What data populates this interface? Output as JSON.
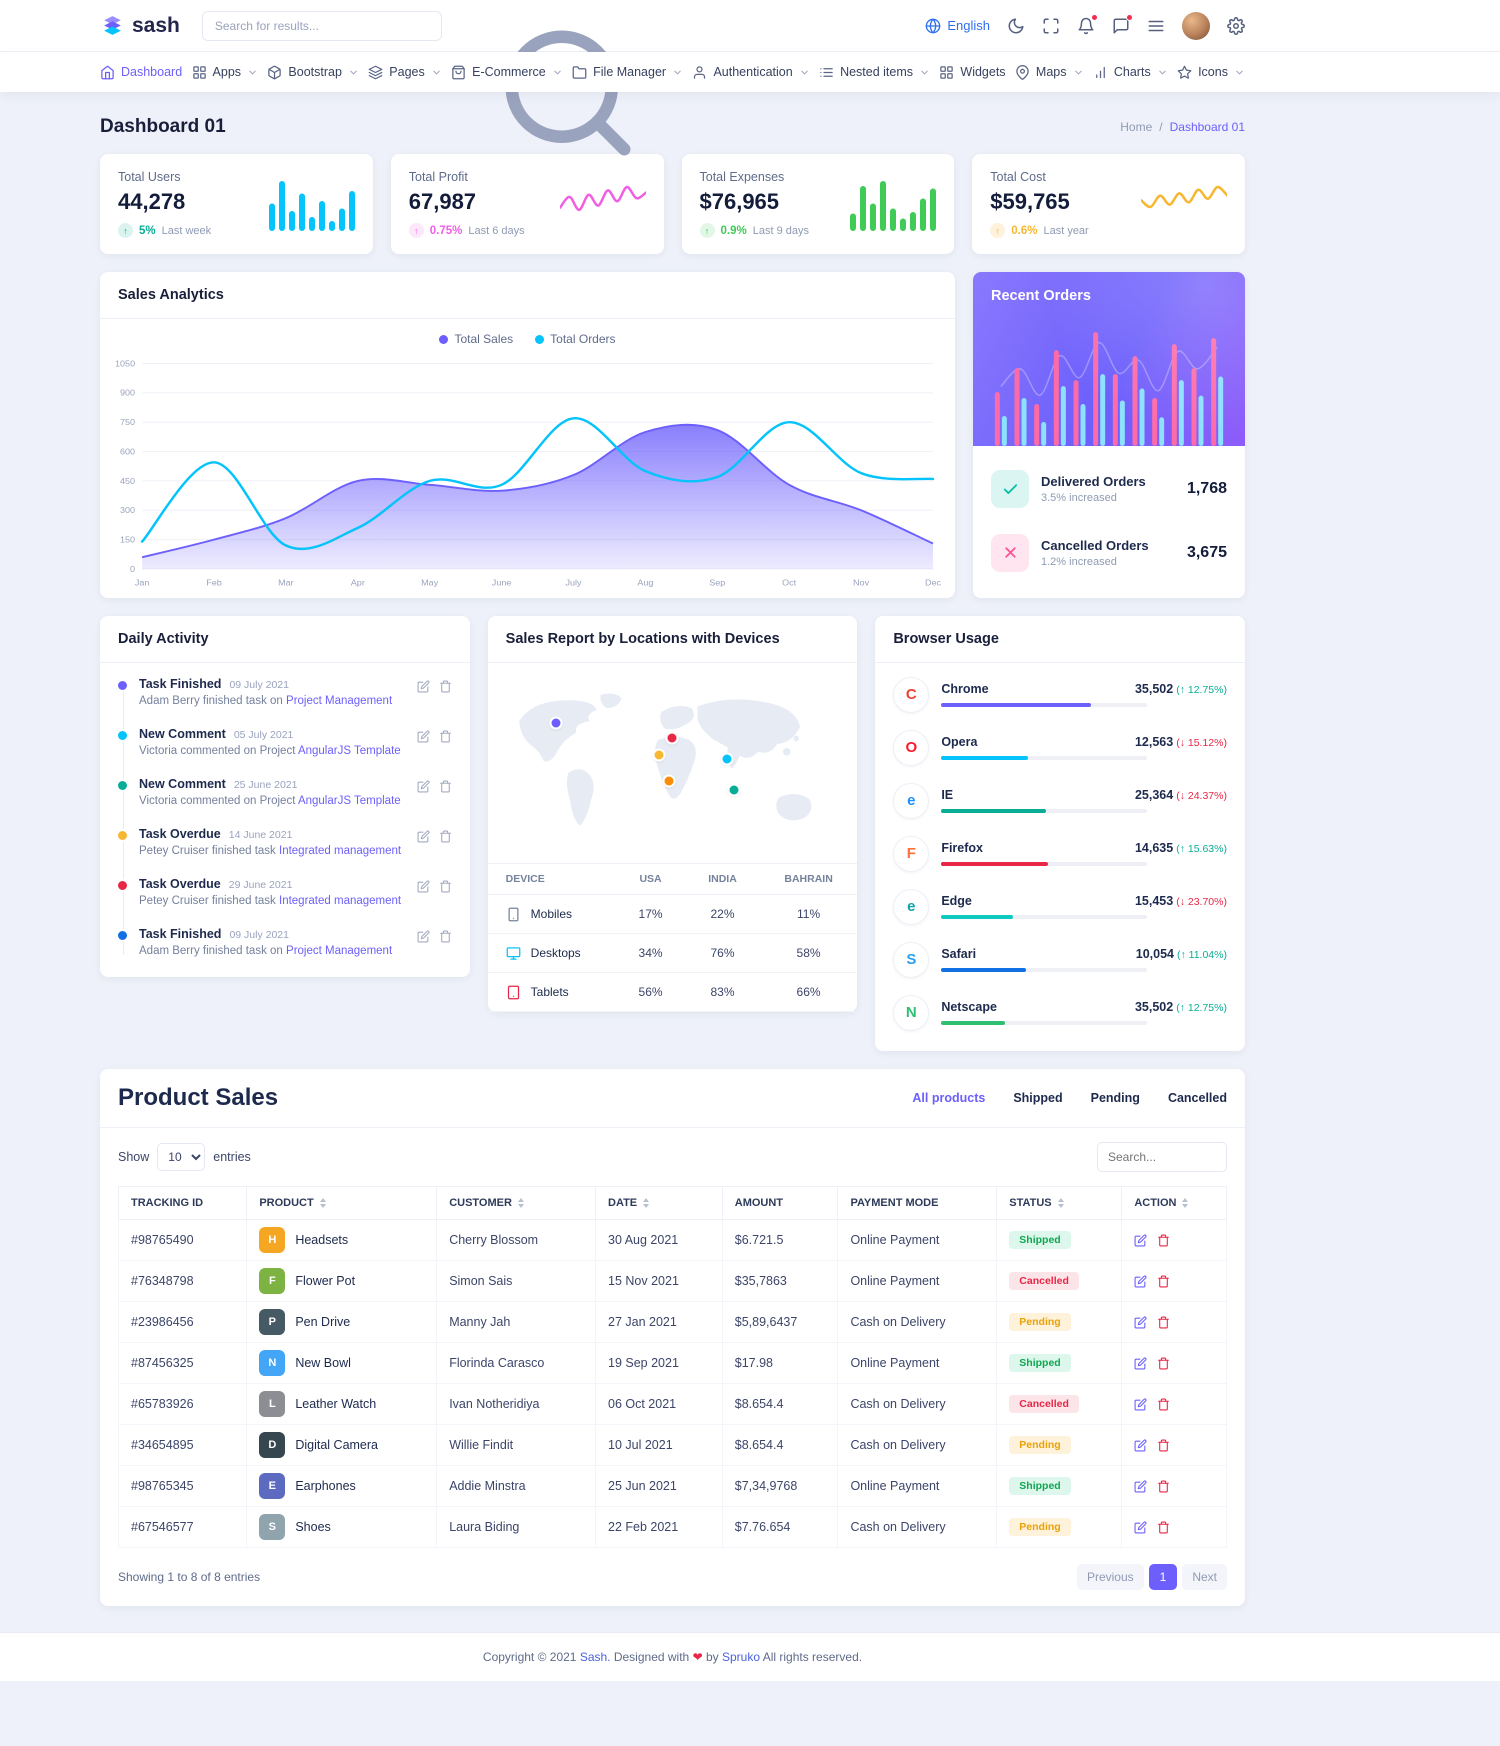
{
  "theme": {
    "primary": "#6c5ffc",
    "secondary": "#05c3fb",
    "success": "#09ad95",
    "danger": "#e82646",
    "warning": "#f7b731",
    "pink": "#fc5296",
    "info": "#1170e4"
  },
  "brand": {
    "name": "sash"
  },
  "icons": {
    "up_arrow": "↑"
  },
  "topbar": {
    "search_placeholder": "Search for results...",
    "language": "English"
  },
  "nav": {
    "items": [
      {
        "label": "Dashboard",
        "icon": "home",
        "caret": false,
        "active": true
      },
      {
        "label": "Apps",
        "icon": "grid",
        "caret": true,
        "active": false
      },
      {
        "label": "Bootstrap",
        "icon": "box",
        "caret": true,
        "active": false
      },
      {
        "label": "Pages",
        "icon": "layers",
        "caret": true,
        "active": false
      },
      {
        "label": "E-Commerce",
        "icon": "bag",
        "caret": true,
        "active": false
      },
      {
        "label": "File Manager",
        "icon": "folder",
        "caret": true,
        "active": false
      },
      {
        "label": "Authentication",
        "icon": "user",
        "caret": true,
        "active": false
      },
      {
        "label": "Nested items",
        "icon": "list",
        "caret": true,
        "active": false
      },
      {
        "label": "Widgets",
        "icon": "grid",
        "caret": false,
        "active": false
      },
      {
        "label": "Maps",
        "icon": "pin",
        "caret": true,
        "active": false
      },
      {
        "label": "Charts",
        "icon": "chart",
        "caret": true,
        "active": false
      },
      {
        "label": "Icons",
        "icon": "star",
        "caret": true,
        "active": false
      }
    ]
  },
  "page": {
    "title": "Dashboard 01",
    "breadcrumb_home": "Home",
    "breadcrumb_sep": "/",
    "breadcrumb_current": "Dashboard 01"
  },
  "stats": [
    {
      "label": "Total Users",
      "value": "44,278",
      "delta": "5%",
      "note": "Last week",
      "delta_color": "#09ad95",
      "delta_bg": "rgba(9,173,149,0.15)",
      "chart": "users_spark"
    },
    {
      "label": "Total Profit",
      "value": "67,987",
      "delta": "0.75%",
      "note": "Last 6 days",
      "delta_color": "#f15ee2",
      "delta_bg": "rgba(241,94,226,0.15)",
      "chart": "profit_spark"
    },
    {
      "label": "Total Expenses",
      "value": "$76,965",
      "delta": "0.9%",
      "note": "Last 9 days",
      "delta_color": "#3fcb56",
      "delta_bg": "rgba(63,203,86,0.15)",
      "chart": "expenses_spark"
    },
    {
      "label": "Total Cost",
      "value": "$59,765",
      "delta": "0.6%",
      "note": "Last year",
      "delta_color": "#f7b731",
      "delta_bg": "rgba(247,183,49,0.18)",
      "chart": "cost_spark"
    }
  ],
  "sales_analytics": {
    "title": "Sales Analytics",
    "legend": [
      {
        "label": "Total Sales",
        "color": "#6c5ffc"
      },
      {
        "label": "Total Orders",
        "color": "#05c3fb"
      }
    ]
  },
  "recent_orders": {
    "title": "Recent Orders",
    "items": [
      {
        "label": "Delivered Orders",
        "sub": "3.5% increased",
        "value": "1,768",
        "icon": "check",
        "color": "#0bbfa5",
        "bg": "rgba(11,191,165,0.15)"
      },
      {
        "label": "Cancelled Orders",
        "sub": "1.2% increased",
        "value": "3,675",
        "icon": "x",
        "color": "#fc5296",
        "bg": "rgba(252,82,150,0.15)"
      }
    ]
  },
  "daily_activity": {
    "title": "Daily Activity",
    "items": [
      {
        "title": "Task Finished",
        "date": "09 July 2021",
        "text": "Adam Berry finished task on",
        "link": "Project Management",
        "dot": "#6c5ffc"
      },
      {
        "title": "New Comment",
        "date": "05 July 2021",
        "text": "Victoria commented on Project",
        "link": "AngularJS Template",
        "dot": "#05c3fb"
      },
      {
        "title": "New Comment",
        "date": "25 June 2021",
        "text": "Victoria commented on Project",
        "link": "AngularJS Template",
        "dot": "#09ad95"
      },
      {
        "title": "Task Overdue",
        "date": "14 June 2021",
        "text": "Petey Cruiser finished task",
        "link": "Integrated management",
        "dot": "#f7b731"
      },
      {
        "title": "Task Overdue",
        "date": "29 June 2021",
        "text": "Petey Cruiser finished task",
        "link": "Integrated management",
        "dot": "#e82646"
      },
      {
        "title": "Task Finished",
        "date": "09 July 2021",
        "text": "Adam Berry finished task on",
        "link": "Project Management",
        "dot": "#1170e4"
      }
    ]
  },
  "sales_report": {
    "title": "Sales Report by Locations with Devices",
    "columns": [
      "DEVICE",
      "USA",
      "INDIA",
      "BAHRAIN"
    ],
    "rows": [
      {
        "device": "Mobiles",
        "icon": "mobile",
        "icon_color": "#74829c",
        "usa": "17%",
        "india": "22%",
        "bahrain": "11%"
      },
      {
        "device": "Desktops",
        "icon": "desktop",
        "icon_color": "#05c3fb",
        "usa": "34%",
        "india": "76%",
        "bahrain": "58%"
      },
      {
        "device": "Tablets",
        "icon": "tablet",
        "icon_color": "#e82646",
        "usa": "56%",
        "india": "83%",
        "bahrain": "66%"
      }
    ],
    "map_markers": [
      {
        "x": 16,
        "y": 27,
        "color": "#6c5ffc"
      },
      {
        "x": 50,
        "y": 35,
        "color": "#e82646"
      },
      {
        "x": 46,
        "y": 44,
        "color": "#f7b731"
      },
      {
        "x": 49,
        "y": 58,
        "color": "#fb8c05"
      },
      {
        "x": 66,
        "y": 46,
        "color": "#05c3fb"
      },
      {
        "x": 68,
        "y": 63,
        "color": "#09ad95"
      }
    ]
  },
  "browser_usage": {
    "title": "Browser Usage",
    "rows": [
      {
        "name": "Chrome",
        "value": "35,502",
        "change": "(↑ 12.75%)",
        "change_color": "#09ad95",
        "bar_color": "#6c5ffc",
        "bar_pct": 73,
        "letter": "C",
        "brand_color": "#ea4335"
      },
      {
        "name": "Opera",
        "value": "12,563",
        "change": "(↓ 15.12%)",
        "change_color": "#e82646",
        "bar_color": "#05c3fb",
        "bar_pct": 42,
        "letter": "O",
        "brand_color": "#ff1b2d"
      },
      {
        "name": "IE",
        "value": "25,364",
        "change": "(↓ 24.37%)",
        "change_color": "#e82646",
        "bar_color": "#09ad95",
        "bar_pct": 51,
        "letter": "e",
        "brand_color": "#1e90ff"
      },
      {
        "name": "Firefox",
        "value": "14,635",
        "change": "(↑ 15.63%)",
        "change_color": "#09ad95",
        "bar_color": "#e82646",
        "bar_pct": 52,
        "letter": "F",
        "brand_color": "#ff7139"
      },
      {
        "name": "Edge",
        "value": "15,453",
        "change": "(↓ 23.70%)",
        "change_color": "#e82646",
        "bar_color": "#0ec9c0",
        "bar_pct": 35,
        "letter": "e",
        "brand_color": "#0ca5ab"
      },
      {
        "name": "Safari",
        "value": "10,054",
        "change": "(↑ 11.04%)",
        "change_color": "#09ad95",
        "bar_color": "#1170e4",
        "bar_pct": 41,
        "letter": "S",
        "brand_color": "#2aa0f1"
      },
      {
        "name": "Netscape",
        "value": "35,502",
        "change": "(↑ 12.75%)",
        "change_color": "#09ad95",
        "bar_color": "#2fbf71",
        "bar_pct": 31,
        "letter": "N",
        "brand_color": "#2fbf71"
      }
    ]
  },
  "product_sales": {
    "title": "Product Sales",
    "tabs": [
      {
        "label": "All products",
        "active": true
      },
      {
        "label": "Shipped",
        "active": false
      },
      {
        "label": "Pending",
        "active": false
      },
      {
        "label": "Cancelled",
        "active": false
      }
    ],
    "show_label": "Show",
    "entries_label": "entries",
    "page_size": "10",
    "search_placeholder": "Search...",
    "columns": [
      {
        "label": "TRACKING ID",
        "sortable": false
      },
      {
        "label": "PRODUCT",
        "sortable": true
      },
      {
        "label": "CUSTOMER",
        "sortable": true
      },
      {
        "label": "DATE",
        "sortable": true
      },
      {
        "label": "AMOUNT",
        "sortable": false
      },
      {
        "label": "PAYMENT MODE",
        "sortable": false
      },
      {
        "label": "STATUS",
        "sortable": true
      },
      {
        "label": "ACTION",
        "sortable": true
      }
    ],
    "rows": [
      {
        "tracking_id": "#98765490",
        "product": "Headsets",
        "thumb_color": "#f5a623",
        "thumb_letter": "H",
        "customer": "Cherry Blossom",
        "date": "30 Aug 2021",
        "amount": "$6.721.5",
        "payment": "Online Payment",
        "status": "Shipped"
      },
      {
        "tracking_id": "#76348798",
        "product": "Flower Pot",
        "thumb_color": "#7cb342",
        "thumb_letter": "F",
        "customer": "Simon Sais",
        "date": "15 Nov 2021",
        "amount": "$35,7863",
        "payment": "Online Payment",
        "status": "Cancelled"
      },
      {
        "tracking_id": "#23986456",
        "product": "Pen Drive",
        "thumb_color": "#455a64",
        "thumb_letter": "P",
        "customer": "Manny Jah",
        "date": "27 Jan 2021",
        "amount": "$5,89,6437",
        "payment": "Cash on Delivery",
        "status": "Pending"
      },
      {
        "tracking_id": "#87456325",
        "product": "New Bowl",
        "thumb_color": "#42a5f5",
        "thumb_letter": "N",
        "customer": "Florinda Carasco",
        "date": "19 Sep 2021",
        "amount": "$17.98",
        "payment": "Online Payment",
        "status": "Shipped"
      },
      {
        "tracking_id": "#65783926",
        "product": "Leather Watch",
        "thumb_color": "#8d8d94",
        "thumb_letter": "L",
        "customer": "Ivan Notheridiya",
        "date": "06 Oct 2021",
        "amount": "$8.654.4",
        "payment": "Cash on Delivery",
        "status": "Cancelled"
      },
      {
        "tracking_id": "#34654895",
        "product": "Digital Camera",
        "thumb_color": "#37474f",
        "thumb_letter": "D",
        "customer": "Willie Findit",
        "date": "10 Jul 2021",
        "amount": "$8.654.4",
        "payment": "Cash on Delivery",
        "status": "Pending"
      },
      {
        "tracking_id": "#98765345",
        "product": "Earphones",
        "thumb_color": "#5c6bc0",
        "thumb_letter": "E",
        "customer": "Addie Minstra",
        "date": "25 Jun 2021",
        "amount": "$7,34,9768",
        "payment": "Online Payment",
        "status": "Shipped"
      },
      {
        "tracking_id": "#67546577",
        "product": "Shoes",
        "thumb_color": "#90a4ae",
        "thumb_letter": "S",
        "customer": "Laura Biding",
        "date": "22 Feb 2021",
        "amount": "$7.76.654",
        "payment": "Cash on Delivery",
        "status": "Pending"
      }
    ],
    "status_styles": {
      "Shipped": {
        "bg": "rgba(45,206,137,0.16)",
        "text": "#0fa751"
      },
      "Pending": {
        "bg": "rgba(247,183,49,0.18)",
        "text": "#e9a107"
      },
      "Cancelled": {
        "bg": "rgba(232,38,70,0.12)",
        "text": "#e82646"
      }
    },
    "footer_text": "Showing 1 to 8 of 8 entries",
    "pagination": {
      "previous": "Previous",
      "current": "1",
      "next": "Next"
    }
  },
  "footer": {
    "copyright": "Copyright © 2021",
    "brand": "Sash.",
    "designed": "Designed with",
    "heart": "❤",
    "by": "by",
    "designer": "Spruko",
    "rights": "All rights reserved."
  },
  "chart_data": [
    {
      "id": "users_spark",
      "type": "bar",
      "color": "#05c3fb",
      "values": [
        55,
        100,
        40,
        75,
        28,
        60,
        20,
        45,
        80
      ]
    },
    {
      "id": "profit_spark",
      "type": "line",
      "color": "#f15ee2",
      "values": [
        40,
        65,
        35,
        70,
        45,
        80,
        55,
        88,
        62,
        75
      ]
    },
    {
      "id": "expenses_spark",
      "type": "bar",
      "color": "#3fcb56",
      "values": [
        35,
        90,
        55,
        100,
        45,
        25,
        38,
        65,
        85
      ]
    },
    {
      "id": "cost_spark",
      "type": "line",
      "color": "#f7b731",
      "values": [
        55,
        40,
        65,
        45,
        70,
        50,
        78,
        58,
        84,
        66
      ]
    },
    {
      "id": "sales_analytics",
      "type": "area-line",
      "title": "Sales Analytics",
      "categories": [
        "Jan",
        "Feb",
        "Mar",
        "Apr",
        "May",
        "June",
        "July",
        "Aug",
        "Sep",
        "Oct",
        "Nov",
        "Dec"
      ],
      "yticks": [
        0,
        150,
        300,
        450,
        600,
        750,
        900,
        1050
      ],
      "ylim": [
        0,
        1050
      ],
      "grid": true,
      "legend_position": "top",
      "series": [
        {
          "name": "Total Sales",
          "type": "area",
          "color": "#6c5ffc",
          "values": [
            60,
            150,
            260,
            450,
            430,
            400,
            480,
            700,
            710,
            430,
            300,
            130
          ]
        },
        {
          "name": "Total Orders",
          "type": "line",
          "color": "#05c3fb",
          "values": [
            140,
            545,
            120,
            210,
            450,
            430,
            770,
            500,
            470,
            750,
            490,
            460
          ]
        }
      ]
    },
    {
      "id": "recent_orders_chart",
      "type": "bar",
      "legend_position": "none",
      "series": [
        {
          "name": "orders",
          "color": "#fd6aa8",
          "values": [
            45,
            65,
            35,
            80,
            55,
            95,
            60,
            75,
            40,
            85,
            65,
            90
          ]
        },
        {
          "name": "sales",
          "color": "#8ce1fd",
          "values": [
            25,
            40,
            20,
            50,
            35,
            60,
            38,
            48,
            24,
            55,
            42,
            58
          ]
        }
      ]
    }
  ]
}
